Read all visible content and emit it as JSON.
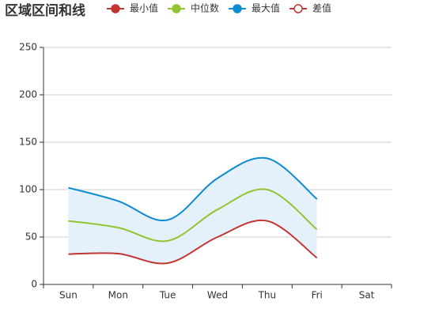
{
  "chart_data": {
    "type": "line",
    "title": "区域区间和线",
    "categories": [
      "Sun",
      "Mon",
      "Tue",
      "Wed",
      "Thu",
      "Fri",
      "Sat"
    ],
    "series": [
      {
        "name": "最小值",
        "color": "#c23531",
        "values": [
          32,
          32.5,
          22.5,
          50,
          67,
          28,
          null
        ]
      },
      {
        "name": "中位数",
        "color": "#91c430",
        "values": [
          67,
          60,
          46,
          79,
          100,
          58,
          null
        ]
      },
      {
        "name": "最大值",
        "color": "#0f8bd0",
        "values": [
          102,
          88,
          68,
          112,
          133,
          90,
          null
        ]
      },
      {
        "name": "差值",
        "color": "#c23531",
        "area_color": "#e4f1fb",
        "stack_on": "最小值",
        "values": [
          70,
          55.5,
          45.5,
          62,
          66,
          62,
          null
        ]
      }
    ],
    "ylim": [
      0,
      250
    ],
    "yticks": [
      0,
      50,
      100,
      150,
      200,
      250
    ],
    "grid": true,
    "smooth": true,
    "legend": "top"
  }
}
